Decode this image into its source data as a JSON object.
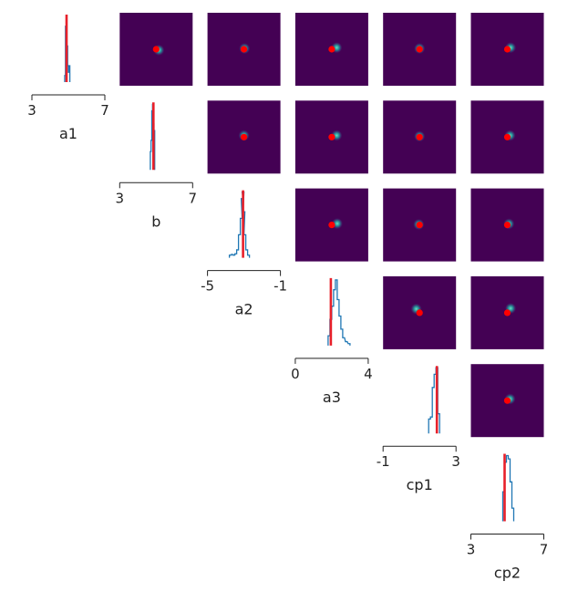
{
  "colors": {
    "background": "#440154",
    "marker": "#ff0000",
    "posterior": "#1f77b4",
    "truth": "#e8202a",
    "glow": "#21a3a0",
    "axis": "#222222"
  },
  "chart_data": {
    "type": "pairplot",
    "parameters": [
      {
        "label": "a1",
        "limits": [
          3,
          7
        ],
        "ticks": [
          "3",
          "7"
        ],
        "true_value": 4.9,
        "hist": [
          [
            4.82,
            0.1
          ],
          [
            4.86,
            0.85
          ],
          [
            4.9,
            1.0
          ],
          [
            4.94,
            0.55
          ],
          [
            4.98,
            0.25
          ],
          [
            5.02,
            0.15
          ],
          [
            5.06,
            0.25
          ]
        ]
      },
      {
        "label": "b",
        "limits": [
          3,
          7
        ],
        "ticks": [
          "3",
          "7"
        ],
        "true_value": 4.85,
        "hist": [
          [
            4.7,
            0.28
          ],
          [
            4.74,
            0.45
          ],
          [
            4.78,
            0.9
          ],
          [
            4.82,
            1.0
          ],
          [
            4.86,
            0.7
          ],
          [
            4.9,
            0.6
          ]
        ]
      },
      {
        "label": "a2",
        "limits": [
          -5,
          -1
        ],
        "ticks": [
          "-5",
          "-1"
        ],
        "true_value": -3.05,
        "hist": [
          [
            -3.75,
            0.04
          ],
          [
            -3.65,
            0.05
          ],
          [
            -3.55,
            0.04
          ],
          [
            -3.45,
            0.06
          ],
          [
            -3.35,
            0.12
          ],
          [
            -3.25,
            0.35
          ],
          [
            -3.15,
            0.6
          ],
          [
            -3.1,
            0.9
          ],
          [
            -3.05,
            1.0
          ],
          [
            -3.0,
            0.7
          ],
          [
            -2.95,
            0.35
          ],
          [
            -2.85,
            0.12
          ],
          [
            -2.75,
            0.04
          ]
        ]
      },
      {
        "label": "a3",
        "limits": [
          0,
          4
        ],
        "ticks": [
          "0",
          "4"
        ],
        "true_value": 1.95,
        "hist": [
          [
            1.85,
            0.15
          ],
          [
            1.95,
            0.4
          ],
          [
            2.05,
            0.6
          ],
          [
            2.15,
            0.85
          ],
          [
            2.25,
            1.0
          ],
          [
            2.35,
            0.7
          ],
          [
            2.45,
            0.45
          ],
          [
            2.55,
            0.25
          ],
          [
            2.65,
            0.12
          ],
          [
            2.8,
            0.06
          ],
          [
            2.95,
            0.03
          ]
        ]
      },
      {
        "label": "cp1",
        "limits": [
          -1,
          3
        ],
        "ticks": [
          "-1",
          "3"
        ],
        "true_value": 1.95,
        "hist": [
          [
            1.55,
            0.22
          ],
          [
            1.65,
            0.25
          ],
          [
            1.75,
            0.7
          ],
          [
            1.85,
            0.9
          ],
          [
            1.95,
            1.0
          ],
          [
            2.05,
            0.3
          ]
        ]
      },
      {
        "label": "cp2",
        "limits": [
          3,
          7
        ],
        "ticks": [
          "3",
          "7"
        ],
        "true_value": 4.85,
        "hist": [
          [
            4.8,
            0.45
          ],
          [
            4.9,
            0.9
          ],
          [
            5.0,
            1.0
          ],
          [
            5.1,
            0.95
          ],
          [
            5.2,
            0.6
          ],
          [
            5.3,
            0.2
          ]
        ]
      }
    ],
    "pair_density": [
      {
        "row": 0,
        "col": 1,
        "offset": [
          0.1,
          0.03
        ]
      },
      {
        "row": 0,
        "col": 2,
        "offset": [
          0.02,
          -0.03
        ]
      },
      {
        "row": 0,
        "col": 3,
        "offset": [
          0.18,
          -0.06
        ]
      },
      {
        "row": 0,
        "col": 4,
        "offset": [
          0.0,
          -0.03
        ]
      },
      {
        "row": 0,
        "col": 5,
        "offset": [
          0.12,
          -0.06
        ]
      },
      {
        "row": 1,
        "col": 2,
        "offset": [
          0.0,
          -0.06
        ]
      },
      {
        "row": 1,
        "col": 3,
        "offset": [
          0.18,
          -0.06
        ]
      },
      {
        "row": 1,
        "col": 4,
        "offset": [
          0.0,
          -0.03
        ]
      },
      {
        "row": 1,
        "col": 5,
        "offset": [
          0.1,
          -0.06
        ]
      },
      {
        "row": 2,
        "col": 3,
        "offset": [
          0.2,
          -0.05
        ]
      },
      {
        "row": 2,
        "col": 4,
        "offset": [
          -0.03,
          -0.02
        ]
      },
      {
        "row": 2,
        "col": 5,
        "offset": [
          0.06,
          -0.04
        ]
      },
      {
        "row": 3,
        "col": 4,
        "offset": [
          -0.12,
          -0.14
        ]
      },
      {
        "row": 3,
        "col": 5,
        "offset": [
          0.12,
          -0.16
        ]
      },
      {
        "row": 4,
        "col": 5,
        "offset": [
          0.1,
          -0.06
        ]
      }
    ]
  }
}
